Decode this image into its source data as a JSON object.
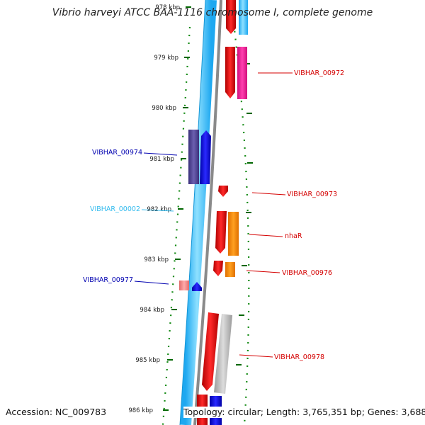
{
  "title": "Vibrio harveyi ATCC BAA-1116 chromosome I, complete genome",
  "footer": {
    "accession": "Accession: NC_009783",
    "summary": "Topology: circular; Length: 3,765,351 bp; Genes: 3,688"
  },
  "ticks": [
    {
      "label": "978 kbp"
    },
    {
      "label": "979 kbp"
    },
    {
      "label": "980 kbp"
    },
    {
      "label": "981 kbp"
    },
    {
      "label": "982 kbp"
    },
    {
      "label": "983 kbp"
    },
    {
      "label": "984 kbp"
    },
    {
      "label": "985 kbp"
    },
    {
      "label": "986 kbp"
    }
  ],
  "gene_labels": [
    {
      "name": "VIBHAR_00972",
      "color": "#d40000"
    },
    {
      "name": "VIBHAR_00974",
      "color": "#0000b0"
    },
    {
      "name": "VIBHAR_00973",
      "color": "#d40000"
    },
    {
      "name": "VIBHAR_00002",
      "color": "#33bbee"
    },
    {
      "name": "nhaR",
      "color": "#d40000"
    },
    {
      "name": "VIBHAR_00976",
      "color": "#d40000"
    },
    {
      "name": "VIBHAR_00977",
      "color": "#0000b0"
    },
    {
      "name": "VIBHAR_00978",
      "color": "#d40000"
    }
  ],
  "colors": {
    "cds_forward": "#ee0000",
    "cds_reverse": "#0000dd",
    "rna": "#22bbee",
    "pseudo": "#ee8888",
    "misc": "#ff8800",
    "pink": "#ff2299",
    "grey": "#b0b0b0",
    "tick": "#006600"
  }
}
